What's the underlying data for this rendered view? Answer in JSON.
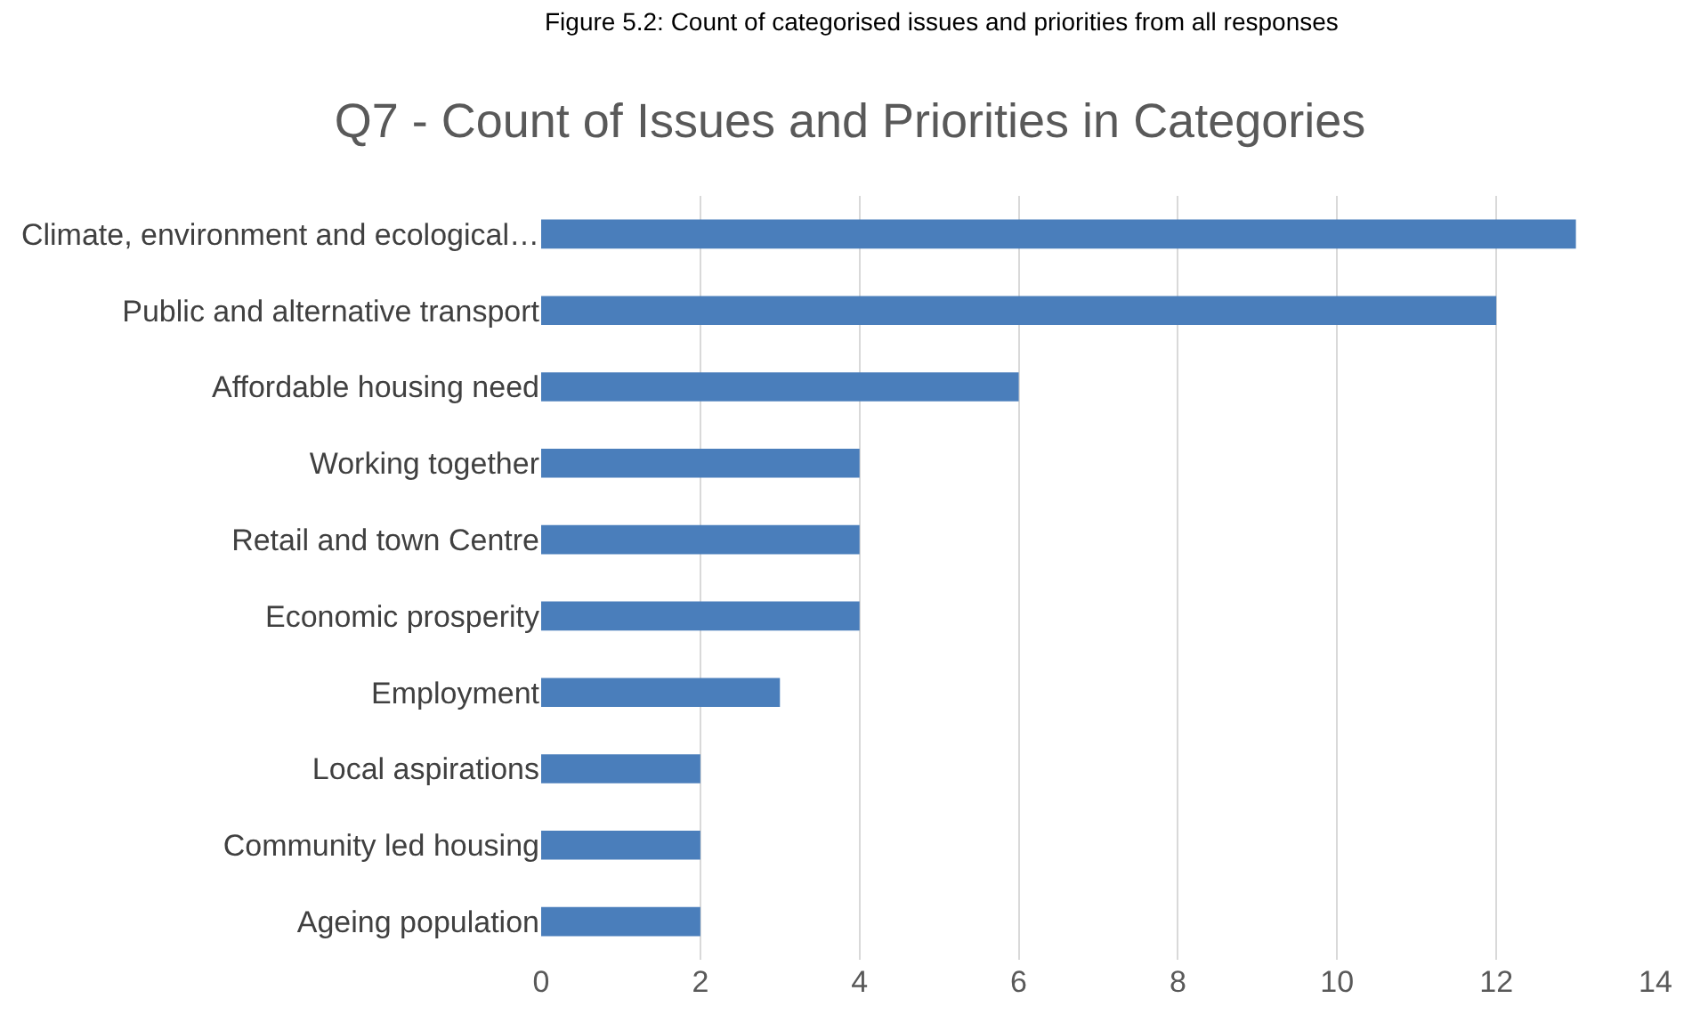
{
  "chart_data": {
    "type": "bar",
    "orientation": "horizontal",
    "title": "Q7 - Count of Issues and Priorities in Categories",
    "annotations": [
      "Figure 5.2: Count of categorised issues and priorities from all responses"
    ],
    "categories": [
      "Climate, environment and ecological…",
      "Public and alternative transport",
      "Affordable housing need",
      "Working together",
      "Retail and town Centre",
      "Economic prosperity",
      "Employment",
      "Local aspirations",
      "Community led housing",
      "Ageing population"
    ],
    "values": [
      13,
      12,
      6,
      4,
      4,
      4,
      3,
      2,
      2,
      2
    ],
    "color": "#4a7ebb",
    "xlim": [
      0,
      14
    ],
    "xticks": [
      0,
      2,
      4,
      6,
      8,
      10,
      12,
      14
    ],
    "grid": "x"
  }
}
